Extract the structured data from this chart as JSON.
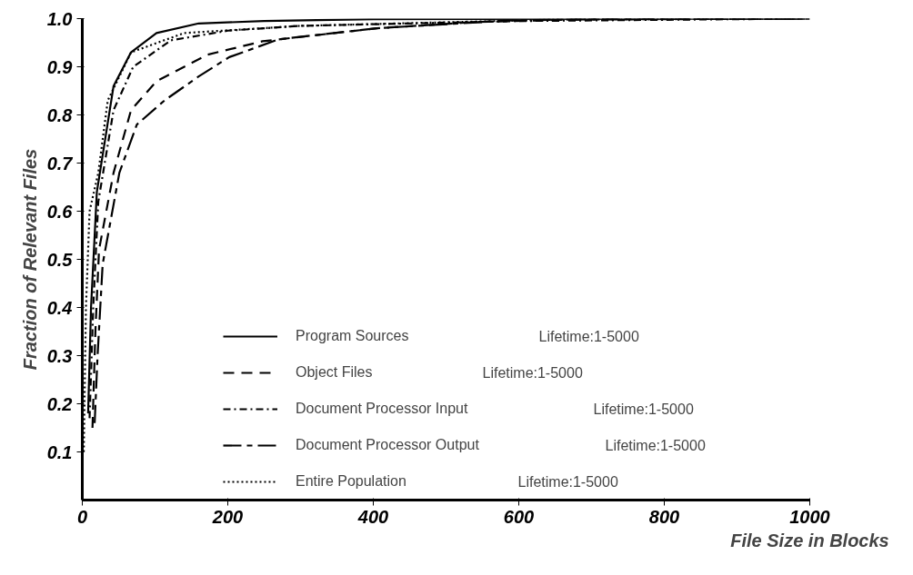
{
  "chart_data": {
    "type": "line",
    "xlabel": "File Size in Blocks",
    "ylabel": "Fraction of Relevant Files",
    "xlim": [
      0,
      1000
    ],
    "ylim": [
      0,
      1.0
    ],
    "xticks": [
      0,
      200,
      400,
      600,
      800,
      1000
    ],
    "yticks": [
      {
        "value": 0.1,
        "label": "0.1"
      },
      {
        "value": 0.2,
        "label": "0.2"
      },
      {
        "value": 0.3,
        "label": "0.3"
      },
      {
        "value": 0.4,
        "label": "0.4"
      },
      {
        "value": 0.5,
        "label": "0.5"
      },
      {
        "value": 0.6,
        "label": "0.6"
      },
      {
        "value": 0.7,
        "label": "0.7"
      },
      {
        "value": 0.8,
        "label": "0.8"
      },
      {
        "value": 0.9,
        "label": "0.9"
      },
      {
        "value": 1.0,
        "label": "1.0"
      }
    ],
    "grid": false,
    "legend": "bottom",
    "marker": "none",
    "annotations": [
      "Lifetime:1-5000",
      "Lifetime:1-5000",
      "Lifetime:1-5000",
      "Lifetime:1-5000",
      "Lifetime:1-5000"
    ],
    "series": [
      {
        "name": "Program Sources",
        "color": "#000000",
        "line_style": "solid",
        "x": [
          8,
          12,
          20,
          43,
          67,
          102,
          160,
          250,
          400,
          1000
        ],
        "values": [
          0.18,
          0.4,
          0.64,
          0.86,
          0.93,
          0.97,
          0.99,
          0.995,
          0.999,
          1.0
        ]
      },
      {
        "name": "Object Files",
        "color": "#000000",
        "line_style": "dashed",
        "x": [
          14,
          18,
          23,
          43,
          67,
          102,
          172,
          248,
          405,
          540,
          680,
          1000
        ],
        "values": [
          0.15,
          0.35,
          0.52,
          0.68,
          0.81,
          0.87,
          0.925,
          0.953,
          0.98,
          0.993,
          0.998,
          1.0
        ]
      },
      {
        "name": "Document Processor Input",
        "color": "#000000",
        "line_style": "dashdot",
        "x": [
          10,
          15,
          22,
          43,
          70,
          122,
          200,
          300,
          600,
          995
        ],
        "values": [
          0.17,
          0.4,
          0.62,
          0.81,
          0.9,
          0.955,
          0.975,
          0.985,
          0.995,
          1.0
        ]
      },
      {
        "name": "Document Processor Output",
        "color": "#000000",
        "line_style": "longdash",
        "x": [
          17,
          21,
          28,
          51,
          75,
          113,
          160,
          202,
          270,
          405,
          585,
          720,
          990
        ],
        "values": [
          0.16,
          0.3,
          0.49,
          0.68,
          0.78,
          0.83,
          0.88,
          0.92,
          0.957,
          0.98,
          0.996,
          0.999,
          1.0
        ]
      },
      {
        "name": "Entire Population",
        "color": "#000000",
        "line_style": "dotted",
        "x": [
          2,
          5,
          10,
          22,
          35,
          67,
          140,
          300,
          650,
          985
        ],
        "values": [
          0.1,
          0.4,
          0.6,
          0.68,
          0.83,
          0.93,
          0.97,
          0.985,
          0.998,
          1.0
        ]
      }
    ]
  }
}
